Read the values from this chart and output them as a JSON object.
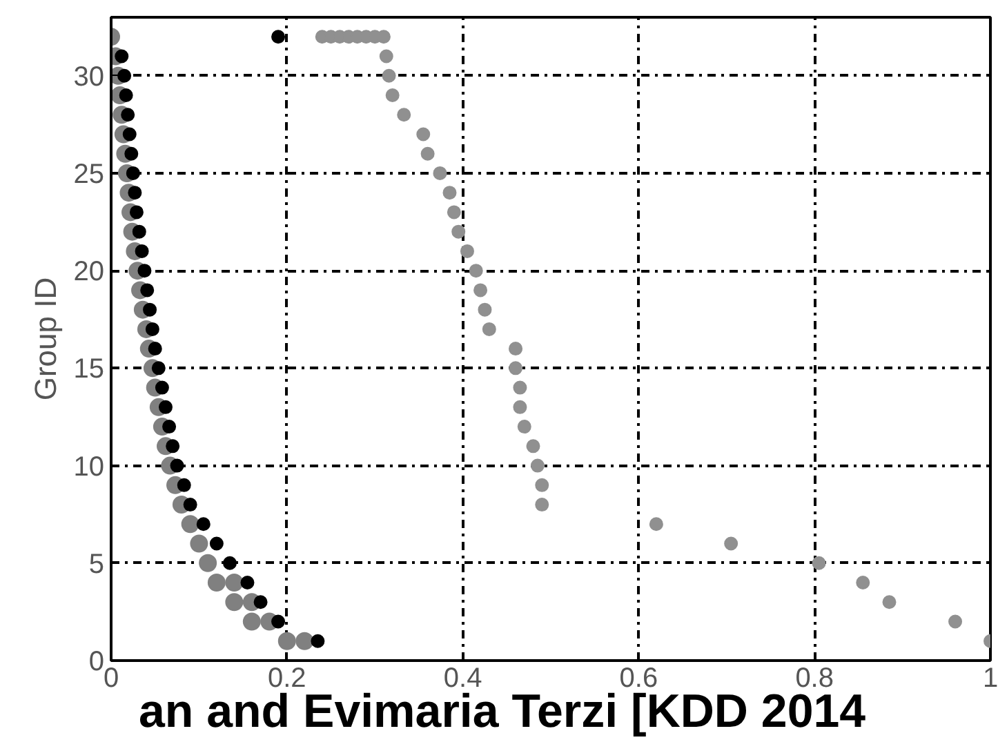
{
  "chart_data": {
    "type": "scatter",
    "ylabel": "Group ID",
    "xlim": [
      0,
      1
    ],
    "ylim": [
      0,
      33
    ],
    "xticks": [
      0,
      0.2,
      0.4,
      0.6,
      0.8,
      1
    ],
    "yticks": [
      0,
      5,
      10,
      15,
      20,
      25,
      30
    ],
    "grid": true,
    "marker": "circle",
    "annotations": [
      "an and Evimaria Terzi [KDD 2014"
    ],
    "series": [
      {
        "color": "#808080",
        "x": [
          0.2,
          0.16,
          0.14,
          0.12,
          0.11,
          0.1,
          0.09,
          0.08,
          0.073,
          0.067,
          0.062,
          0.058,
          0.054,
          0.05,
          0.047,
          0.043,
          0.04,
          0.036,
          0.033,
          0.03,
          0.027,
          0.024,
          0.022,
          0.02,
          0.018,
          0.016,
          0.014,
          0.012,
          0.01,
          0.008,
          0.005,
          0.0,
          0.22,
          0.18,
          0.16,
          0.14
        ],
        "values": [
          1,
          2,
          3,
          4,
          5,
          6,
          7,
          8,
          9,
          10,
          11,
          12,
          13,
          14,
          15,
          16,
          17,
          18,
          19,
          20,
          21,
          22,
          23,
          24,
          25,
          26,
          27,
          28,
          29,
          30,
          31,
          32,
          1,
          2,
          3,
          4
        ]
      },
      {
        "color": "#000000",
        "x": [
          0.235,
          0.19,
          0.17,
          0.155,
          0.135,
          0.12,
          0.105,
          0.09,
          0.083,
          0.075,
          0.07,
          0.066,
          0.062,
          0.058,
          0.054,
          0.05,
          0.047,
          0.044,
          0.041,
          0.038,
          0.035,
          0.032,
          0.029,
          0.027,
          0.025,
          0.023,
          0.021,
          0.019,
          0.017,
          0.015,
          0.012,
          0.19
        ],
        "values": [
          1,
          2,
          3,
          4,
          5,
          6,
          7,
          8,
          9,
          10,
          11,
          12,
          13,
          14,
          15,
          16,
          17,
          18,
          19,
          20,
          21,
          22,
          23,
          24,
          25,
          26,
          27,
          28,
          29,
          30,
          31,
          32
        ]
      },
      {
        "color": "#909090",
        "x": [
          1.0,
          0.96,
          0.885,
          0.855,
          0.805,
          0.705,
          0.62,
          0.49,
          0.49,
          0.485,
          0.48,
          0.47,
          0.465,
          0.465,
          0.46,
          0.46,
          0.43,
          0.425,
          0.42,
          0.415,
          0.405,
          0.395,
          0.39,
          0.385,
          0.374,
          0.36,
          0.355,
          0.333,
          0.32,
          0.316,
          0.313,
          0.24,
          0.25,
          0.26,
          0.27,
          0.28,
          0.29,
          0.3,
          0.31
        ],
        "values": [
          1,
          2,
          3,
          4,
          5,
          6,
          7,
          8,
          9,
          10,
          11,
          12,
          13,
          14,
          15,
          16,
          17,
          18,
          19,
          20,
          21,
          22,
          23,
          24,
          25,
          26,
          27,
          28,
          29,
          30,
          31,
          32,
          32,
          32,
          32,
          32,
          32,
          32,
          32
        ]
      }
    ]
  }
}
